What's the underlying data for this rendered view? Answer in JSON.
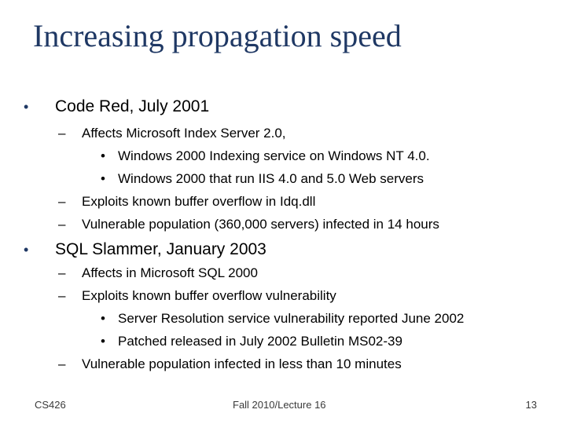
{
  "slide": {
    "title": "Increasing propagation speed",
    "bullets": [
      {
        "text": "Code Red, July 2001",
        "sub": [
          {
            "text": "Affects Microsoft Index Server 2.0,",
            "sub": [
              "Windows 2000 Indexing service on Windows NT 4.0.",
              "Windows 2000 that run IIS 4.0 and 5.0 Web servers"
            ]
          },
          {
            "text": "Exploits known buffer overflow in Idq.dll"
          },
          {
            "text": "Vulnerable population (360,000 servers) infected in 14 hours"
          }
        ]
      },
      {
        "text": "SQL Slammer, January 2003",
        "sub": [
          {
            "text": "Affects in Microsoft SQL 2000"
          },
          {
            "text": "Exploits known buffer overflow vulnerability",
            "sub": [
              "Server Resolution service vulnerability reported June 2002",
              "Patched released in July 2002 Bulletin MS02-39"
            ]
          },
          {
            "text": "Vulnerable population infected in less than 10 minutes"
          }
        ]
      }
    ],
    "symbols": {
      "bullet": "•",
      "dash": "–",
      "dot": "•"
    }
  },
  "footer": {
    "left": "CS426",
    "center": "Fall 2010/Lecture 16",
    "right": "13"
  },
  "colors": {
    "title": "#1f3864",
    "text": "#000000"
  }
}
